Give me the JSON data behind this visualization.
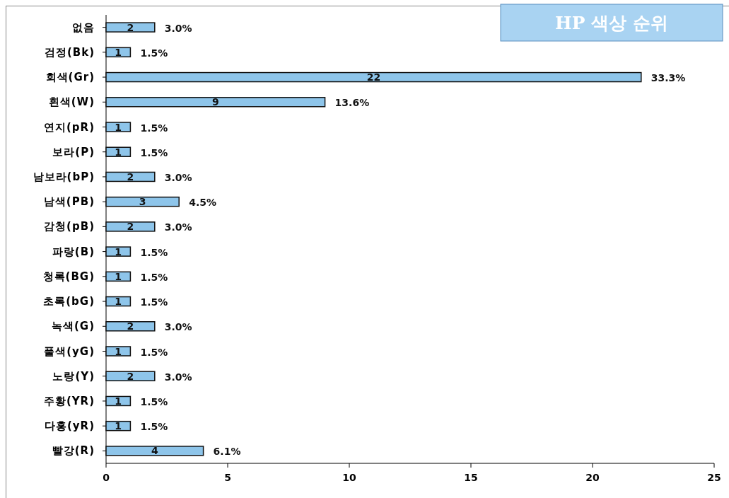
{
  "chart_data": {
    "type": "bar",
    "orientation": "horizontal",
    "title": "HP 색상 순위",
    "categories": [
      "없음",
      "검정(Bk)",
      "회색(Gr)",
      "흰색(W)",
      "연지(pR)",
      "보라(P)",
      "남보라(bP)",
      "남색(PB)",
      "감청(pB)",
      "파랑(B)",
      "청록(BG)",
      "초록(bG)",
      "녹색(G)",
      "풀색(yG)",
      "노랑(Y)",
      "주황(YR)",
      "다홍(yR)",
      "빨강(R)"
    ],
    "values": [
      2,
      1,
      22,
      9,
      1,
      1,
      2,
      3,
      2,
      1,
      1,
      1,
      2,
      1,
      2,
      1,
      1,
      4
    ],
    "color": "#8ec5ea",
    "data_labels": true,
    "grid": false,
    "xlim": [
      0,
      25
    ],
    "xticks": [
      0,
      5,
      10,
      15,
      20,
      25
    ],
    "annotations": [
      {
        "text": "3.0%",
        "x": 2,
        "y": "없음"
      },
      {
        "text": "1.5%",
        "x": 1,
        "y": "검정(Bk)"
      },
      {
        "text": "33.3%",
        "x": 22,
        "y": "회색(Gr)"
      },
      {
        "text": "13.6%",
        "x": 9,
        "y": "흰색(W)"
      },
      {
        "text": "1.5%",
        "x": 1,
        "y": "연지(pR)"
      },
      {
        "text": "1.5%",
        "x": 1,
        "y": "보라(P)"
      },
      {
        "text": "3.0%",
        "x": 2,
        "y": "남보라(bP)"
      },
      {
        "text": "4.5%",
        "x": 3,
        "y": "남색(PB)"
      },
      {
        "text": "3.0%",
        "x": 2,
        "y": "감청(pB)"
      },
      {
        "text": "1.5%",
        "x": 1,
        "y": "파랑(B)"
      },
      {
        "text": "1.5%",
        "x": 1,
        "y": "청록(BG)"
      },
      {
        "text": "1.5%",
        "x": 1,
        "y": "초록(bG)"
      },
      {
        "text": "3.0%",
        "x": 2,
        "y": "녹색(G)"
      },
      {
        "text": "1.5%",
        "x": 1,
        "y": "풀색(yG)"
      },
      {
        "text": "3.0%",
        "x": 2,
        "y": "노랑(Y)"
      },
      {
        "text": "1.5%",
        "x": 1,
        "y": "주황(YR)"
      },
      {
        "text": "1.5%",
        "x": 1,
        "y": "다홍(yR)"
      },
      {
        "text": "6.1%",
        "x": 4,
        "y": "빨강(R)"
      }
    ]
  }
}
